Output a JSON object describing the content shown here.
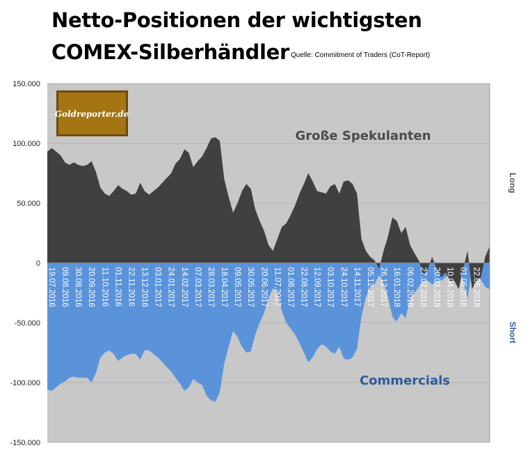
{
  "title": {
    "line1": "Netto-Positionen der wichtigsten",
    "line2": "COMEX-Silberhändler",
    "source": "Quelle: Commitment of Traders (CoT-Report)"
  },
  "logo": {
    "text": "Goldreporter.de"
  },
  "colors": {
    "plot_bg": "#c8c8c8",
    "speculators": "#404040",
    "commercials": "#5b93db",
    "commercials_label": "#2e5c9a",
    "axis": "#999999"
  },
  "chart_data": {
    "type": "area",
    "title": "Netto-Positionen der wichtigsten COMEX-Silberhändler",
    "ylim": [
      -150000,
      150000
    ],
    "y_ticks": [
      "150.000",
      "100.000",
      "50.000",
      "0",
      "-50.000",
      "-100.000",
      "-150.000"
    ],
    "y_tick_values": [
      150000,
      100000,
      50000,
      0,
      -50000,
      -100000,
      -150000
    ],
    "right_labels": {
      "top": "Long",
      "bottom": "Short"
    },
    "annotations": [
      {
        "text": "Große Spekulanten",
        "series": "Große Spekulanten"
      },
      {
        "text": "Commercials",
        "series": "Commercials"
      }
    ],
    "x_tick_labels": [
      "19.07.2016",
      "09.08.2016",
      "30.08.2016",
      "20.09.2016",
      "11.10.2016",
      "01.11.2016",
      "22.11.2016",
      "13.12.2016",
      "03.01.2017",
      "24.01.2017",
      "14.02.2017",
      "07.03.2017",
      "28.03.2017",
      "18.04.2017",
      "09.05.2017",
      "30.05.2017",
      "20.06.2017",
      "11.07.2017",
      "01.08.2017",
      "22.08.2017",
      "12.09.2017",
      "03.10.2017",
      "24.10.2017",
      "14.11.2017",
      "05.12.2017",
      "26.12.2017",
      "16.01.2018",
      "06.02.2018",
      "27.02.2018",
      "20.03.2018",
      "10.04.2018",
      "01.05.2018",
      "22.05.2018"
    ],
    "x_tick_step_weeks": 3,
    "series": [
      {
        "name": "Große Spekulanten",
        "values": [
          93000,
          96000,
          93000,
          90000,
          84000,
          82000,
          84000,
          82000,
          81000,
          82000,
          85000,
          76000,
          63000,
          58000,
          56000,
          60000,
          65000,
          62000,
          60000,
          57000,
          58000,
          67000,
          60000,
          57000,
          60000,
          63000,
          67000,
          71000,
          75000,
          83000,
          87000,
          95000,
          92000,
          80000,
          85000,
          89000,
          96000,
          104000,
          105000,
          102000,
          70000,
          55000,
          42000,
          50000,
          60000,
          66000,
          62000,
          45000,
          35000,
          27000,
          15000,
          10000,
          20000,
          30000,
          33000,
          40000,
          48000,
          58000,
          66000,
          75000,
          68000,
          60000,
          59000,
          58000,
          64000,
          66000,
          58000,
          68000,
          69000,
          66000,
          58000,
          20000,
          10000,
          5000,
          2000,
          -5000,
          10000,
          22000,
          38000,
          35000,
          25000,
          30000,
          15000,
          8000,
          2000,
          -10000,
          -5000,
          5000,
          -5000,
          -12000,
          -8000,
          -15000,
          -15000,
          -22000,
          -5000,
          10000,
          -22000,
          -15000,
          -12000,
          5000,
          14000
        ]
      },
      {
        "name": "Commercials",
        "values": [
          -106000,
          -107000,
          -104000,
          -101000,
          -99000,
          -96000,
          -95000,
          -96000,
          -96000,
          -96000,
          -100000,
          -92000,
          -79000,
          -75000,
          -73000,
          -76000,
          -82000,
          -79000,
          -77000,
          -76000,
          -76000,
          -81000,
          -73000,
          -73000,
          -76000,
          -79000,
          -83000,
          -87000,
          -91000,
          -96000,
          -101000,
          -107000,
          -104000,
          -97000,
          -100000,
          -102000,
          -111000,
          -115000,
          -116000,
          -108000,
          -84000,
          -70000,
          -57000,
          -62000,
          -70000,
          -75000,
          -74000,
          -60000,
          -50000,
          -42000,
          -30000,
          -21000,
          -25000,
          -40000,
          -50000,
          -55000,
          -60000,
          -67000,
          -75000,
          -83000,
          -79000,
          -72000,
          -68000,
          -70000,
          -74000,
          -76000,
          -70000,
          -80000,
          -81000,
          -79000,
          -72000,
          -45000,
          -29000,
          -20000,
          -18000,
          -10000,
          -17000,
          -28000,
          -45000,
          -49000,
          -42000,
          -46000,
          -30000,
          -25000,
          -20000,
          -15000,
          -15000,
          -18000,
          -15000,
          -15000,
          -12000,
          -8000,
          -8000,
          -3000,
          -15000,
          -30000,
          -5000,
          -8000,
          -14000,
          -20000,
          -22000
        ]
      }
    ]
  }
}
